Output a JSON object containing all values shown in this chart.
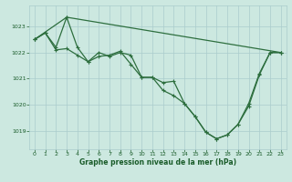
{
  "background_color": "#cce8e0",
  "grid_color": "#aacccc",
  "line_color": "#2d6e3e",
  "xlabel": "Graphe pression niveau de la mer (hPa)",
  "xlabel_color": "#1a5c2a",
  "xlim": [
    -0.5,
    23.5
  ],
  "ylim": [
    1018.3,
    1023.8
  ],
  "yticks": [
    1019,
    1020,
    1021,
    1022,
    1023
  ],
  "xticks": [
    0,
    1,
    2,
    3,
    4,
    5,
    6,
    7,
    8,
    9,
    10,
    11,
    12,
    13,
    14,
    15,
    16,
    17,
    18,
    19,
    20,
    21,
    22,
    23
  ],
  "line1_x": [
    0,
    1,
    2,
    3,
    4,
    5,
    6,
    7,
    8,
    9,
    10,
    11,
    12,
    13,
    14,
    15,
    16,
    17,
    18,
    19,
    20,
    21,
    22,
    23
  ],
  "line1_y": [
    1022.5,
    1022.75,
    1022.2,
    1023.35,
    1022.2,
    1021.65,
    1022.0,
    1021.85,
    1022.0,
    1021.9,
    1021.05,
    1021.05,
    1020.85,
    1020.9,
    1020.05,
    1019.55,
    1018.95,
    1018.7,
    1018.85,
    1019.25,
    1020.05,
    1021.2,
    1022.0,
    1022.0
  ],
  "line2_x": [
    0,
    1,
    2,
    3,
    4,
    5,
    6,
    7,
    8,
    9,
    10,
    11,
    12,
    13,
    14,
    15,
    16,
    17,
    18,
    19,
    20,
    21,
    22,
    23
  ],
  "line2_y": [
    1022.5,
    1022.75,
    1022.1,
    1022.15,
    1021.9,
    1021.65,
    1021.85,
    1021.9,
    1022.05,
    1021.55,
    1021.05,
    1021.05,
    1020.55,
    1020.35,
    1020.05,
    1019.55,
    1018.95,
    1018.7,
    1018.85,
    1019.25,
    1019.95,
    1021.15,
    1022.0,
    1022.0
  ],
  "line3_x": [
    0,
    3,
    23
  ],
  "line3_y": [
    1022.5,
    1023.35,
    1022.0
  ]
}
